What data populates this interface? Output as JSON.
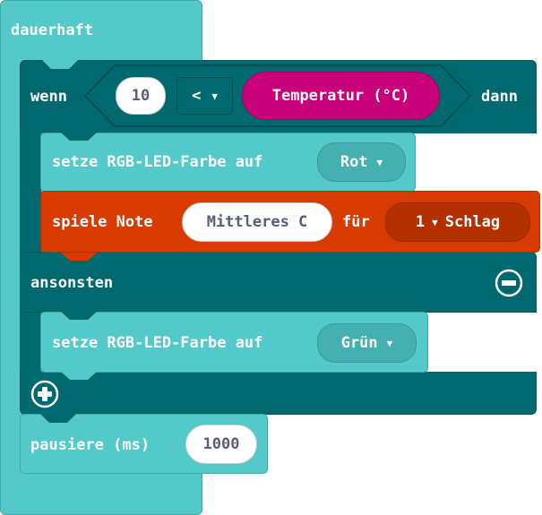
{
  "forever": {
    "label": "dauerhaft"
  },
  "if_block": {
    "if_label": "wenn",
    "then_label": "dann",
    "else_label": "ansonsten",
    "condition": {
      "left_value": "10",
      "operator": "<",
      "right_reporter": "Temperatur (°C)"
    }
  },
  "then_blocks": [
    {
      "label": "setze RGB-LED-Farbe auf",
      "color_value": "Rot"
    },
    {
      "label": "spiele Note",
      "note_value": "Mittleres C",
      "for_label": "für",
      "beats_value": "1",
      "beats_unit": "Schlag"
    }
  ],
  "else_blocks": [
    {
      "label": "setze RGB-LED-Farbe auf",
      "color_value": "Grün"
    }
  ],
  "pause": {
    "label": "pausiere (ms)",
    "value": "1000"
  },
  "colors": {
    "loops": "#54c9c9",
    "logic": "#006970",
    "sensor": "#c8007a",
    "music": "#d83b01"
  },
  "icons": {
    "remove": "minus-circle-icon",
    "add": "plus-circle-icon",
    "dropdown": "triangle-down-icon"
  }
}
